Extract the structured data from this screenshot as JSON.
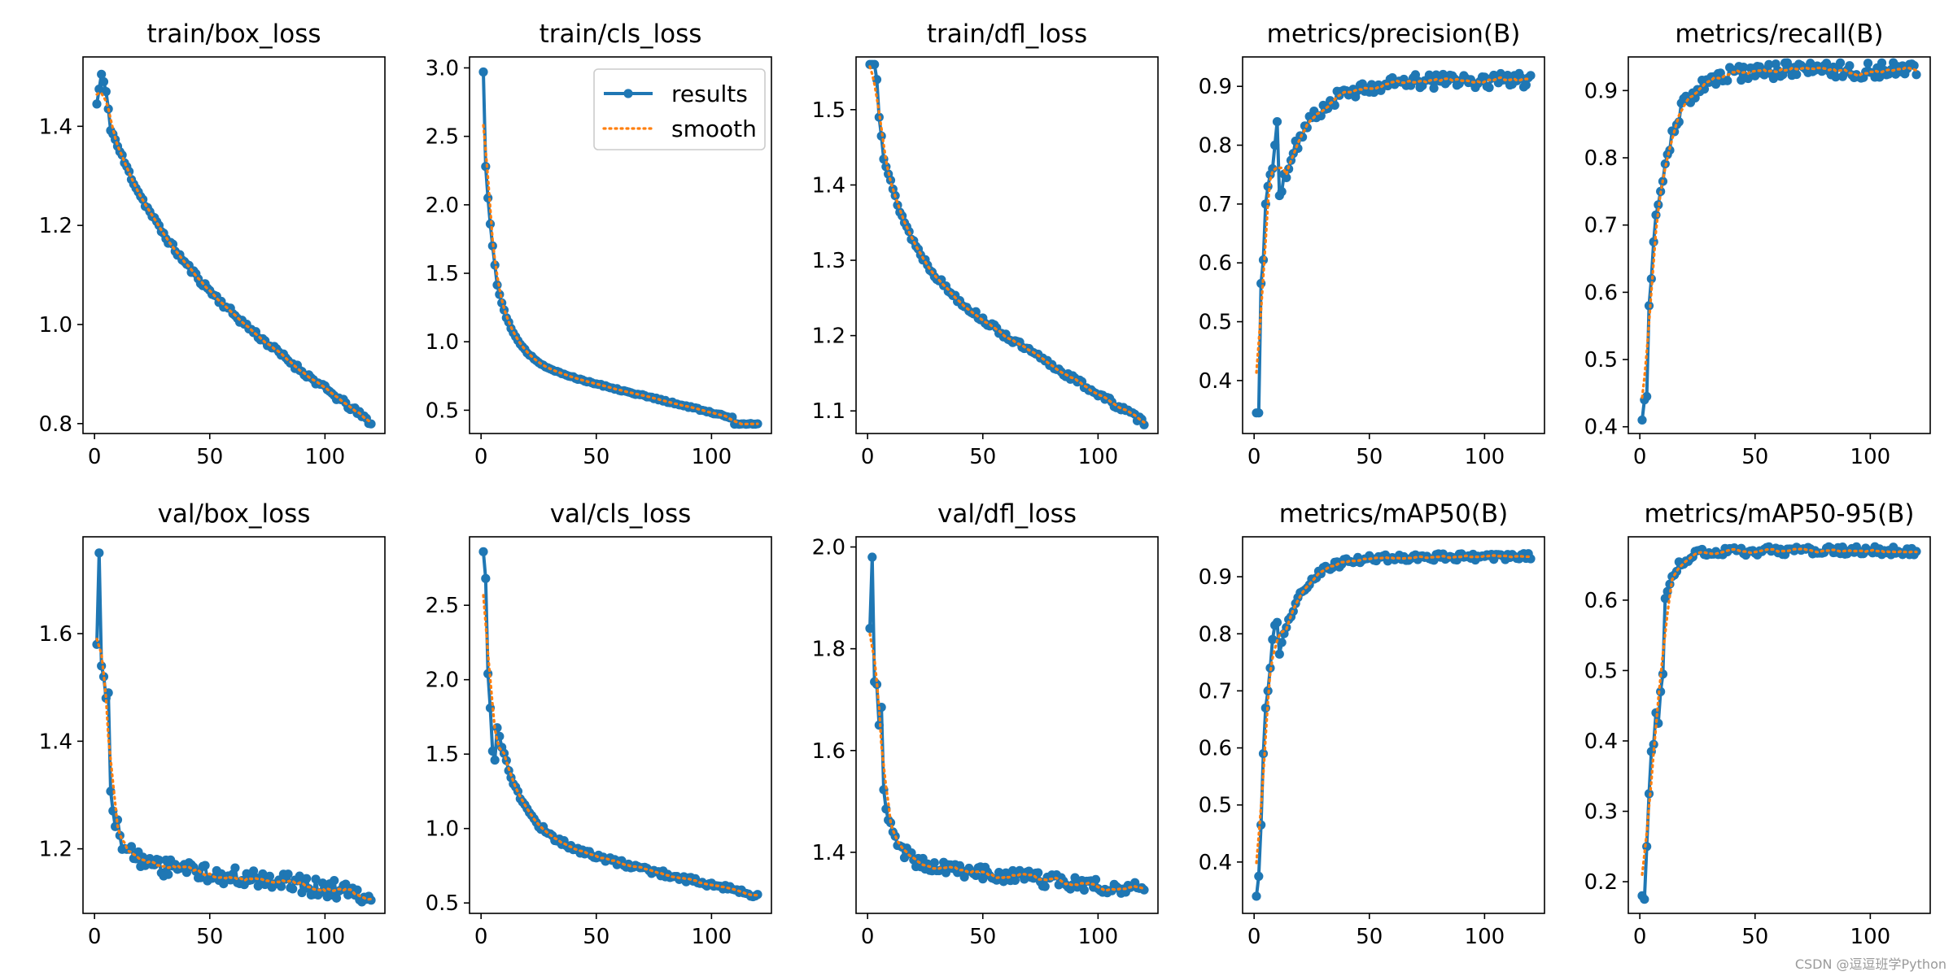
{
  "watermark": "CSDN @逗逗班学Python",
  "colors": {
    "results": "#1f77b4",
    "smooth": "#ff7f0e",
    "axis": "#000000"
  },
  "legend": {
    "placement": "upper right (train/cls_loss panel)",
    "results_label": "results",
    "smooth_label": "smooth"
  },
  "chart_data": [
    {
      "type": "line",
      "title": "train/box_loss",
      "xlim": [
        -5,
        126
      ],
      "ylim": [
        0.78,
        1.54
      ],
      "xticks": [
        0,
        50,
        100
      ],
      "xtick_labels": [
        "0",
        "50",
        "100"
      ],
      "yticks": [
        0.8,
        1.0,
        1.2,
        1.4
      ],
      "ytick_labels": [
        "0.8",
        "1.0",
        "1.2",
        "1.4"
      ],
      "curve": {
        "start": 1.48,
        "end": 0.8,
        "k": 5.0,
        "lin": 0.58
      },
      "overrides": [
        [
          1,
          1.445
        ],
        [
          2,
          1.475
        ],
        [
          3,
          1.505
        ],
        [
          4,
          1.49
        ],
        [
          5,
          1.47
        ],
        [
          6,
          1.435
        ]
      ],
      "noise": 0.006,
      "seed": 11
    },
    {
      "type": "line",
      "title": "train/cls_loss",
      "xlim": [
        -5,
        126
      ],
      "ylim": [
        0.33,
        3.08
      ],
      "xticks": [
        0,
        50,
        100
      ],
      "xtick_labels": [
        "0",
        "50",
        "100"
      ],
      "yticks": [
        0.5,
        1.0,
        1.5,
        2.0,
        2.5,
        3.0
      ],
      "ytick_labels": [
        "0.5",
        "1.0",
        "1.5",
        "2.0",
        "2.5",
        "3.0"
      ],
      "curve": {
        "start": 2.05,
        "end": 0.4,
        "k": 15.0,
        "lin": 0.3
      },
      "overrides": [
        [
          1,
          2.97
        ],
        [
          2,
          2.28
        ],
        [
          3,
          2.05
        ],
        [
          4,
          1.86
        ],
        [
          5,
          1.7
        ],
        [
          6,
          1.56
        ]
      ],
      "drop": {
        "at": 110,
        "to": 0.4
      },
      "noise": 0.006,
      "seed": 12,
      "legend": true
    },
    {
      "type": "line",
      "title": "train/dfl_loss",
      "xlim": [
        -5,
        126
      ],
      "ylim": [
        1.07,
        1.57
      ],
      "xticks": [
        0,
        50,
        100
      ],
      "xtick_labels": [
        "0",
        "50",
        "100"
      ],
      "yticks": [
        1.1,
        1.2,
        1.3,
        1.4,
        1.5
      ],
      "ytick_labels": [
        "1.1",
        "1.2",
        "1.3",
        "1.4",
        "1.5"
      ],
      "curve": {
        "start": 1.53,
        "end": 1.085,
        "k": 9.0,
        "lin": 0.5
      },
      "overrides": [
        [
          1,
          1.56
        ],
        [
          2,
          1.56
        ],
        [
          3,
          1.56
        ],
        [
          4,
          1.54
        ],
        [
          5,
          1.49
        ],
        [
          6,
          1.465
        ]
      ],
      "noise": 0.004,
      "seed": 13
    },
    {
      "type": "line",
      "title": "metrics/precision(B)",
      "xlim": [
        -5,
        126
      ],
      "ylim": [
        0.31,
        0.95
      ],
      "xticks": [
        0,
        50,
        100
      ],
      "xtick_labels": [
        "0",
        "50",
        "100"
      ],
      "yticks": [
        0.4,
        0.5,
        0.6,
        0.7,
        0.8,
        0.9
      ],
      "ytick_labels": [
        "0.4",
        "0.5",
        "0.6",
        "0.7",
        "0.8",
        "0.9"
      ],
      "curve": {
        "start": 0.5,
        "end": 0.91,
        "k": 9.0,
        "lin": 0.0
      },
      "overrides": [
        [
          1,
          0.345
        ],
        [
          2,
          0.345
        ],
        [
          3,
          0.565
        ],
        [
          4,
          0.605
        ],
        [
          5,
          0.7
        ],
        [
          6,
          0.73
        ],
        [
          7,
          0.75
        ],
        [
          8,
          0.76
        ],
        [
          9,
          0.8
        ],
        [
          10,
          0.84
        ]
      ],
      "noise": 0.012,
      "seed": 14
    },
    {
      "type": "line",
      "title": "metrics/recall(B)",
      "xlim": [
        -5,
        126
      ],
      "ylim": [
        0.39,
        0.95
      ],
      "xticks": [
        0,
        50,
        100
      ],
      "xtick_labels": [
        "0",
        "50",
        "100"
      ],
      "yticks": [
        0.4,
        0.5,
        0.6,
        0.7,
        0.8,
        0.9
      ],
      "ytick_labels": [
        "0.4",
        "0.5",
        "0.6",
        "0.7",
        "0.8",
        "0.9"
      ],
      "curve": {
        "start": 0.49,
        "end": 0.93,
        "k": 14.0,
        "lin": 0.0
      },
      "overrides": [
        [
          1,
          0.41
        ],
        [
          2,
          0.44
        ],
        [
          3,
          0.445
        ],
        [
          4,
          0.58
        ],
        [
          5,
          0.62
        ],
        [
          6,
          0.675
        ],
        [
          7,
          0.715
        ],
        [
          8,
          0.73
        ],
        [
          9,
          0.75
        ],
        [
          10,
          0.765
        ]
      ],
      "noise": 0.012,
      "seed": 15
    },
    {
      "type": "line",
      "title": "val/box_loss",
      "xlim": [
        -5,
        126
      ],
      "ylim": [
        1.08,
        1.78
      ],
      "xticks": [
        0,
        50,
        100
      ],
      "xtick_labels": [
        "0",
        "50",
        "100"
      ],
      "yticks": [
        1.2,
        1.4,
        1.6
      ],
      "ytick_labels": [
        "1.2",
        "1.4",
        "1.6"
      ],
      "curve": {
        "start": 1.56,
        "end": 1.115,
        "k": 24.0,
        "lin": 0.15
      },
      "overrides": [
        [
          1,
          1.58
        ],
        [
          2,
          1.75
        ],
        [
          3,
          1.54
        ],
        [
          4,
          1.52
        ],
        [
          5,
          1.48
        ],
        [
          6,
          1.49
        ]
      ],
      "noise": 0.018,
      "seed": 16
    },
    {
      "type": "line",
      "title": "val/cls_loss",
      "xlim": [
        -5,
        126
      ],
      "ylim": [
        0.43,
        2.96
      ],
      "xticks": [
        0,
        50,
        100
      ],
      "xtick_labels": [
        "0",
        "50",
        "100"
      ],
      "yticks": [
        0.5,
        1.0,
        1.5,
        2.0,
        2.5
      ],
      "ytick_labels": [
        "0.5",
        "1.0",
        "1.5",
        "2.0",
        "2.5"
      ],
      "curve": {
        "start": 2.25,
        "end": 0.55,
        "k": 11.0,
        "lin": 0.25
      },
      "overrides": [
        [
          1,
          2.86
        ],
        [
          2,
          2.68
        ],
        [
          3,
          2.04
        ],
        [
          4,
          1.81
        ],
        [
          5,
          1.52
        ],
        [
          6,
          1.46
        ]
      ],
      "noise": 0.02,
      "seed": 17
    },
    {
      "type": "line",
      "title": "val/dfl_loss",
      "xlim": [
        -5,
        126
      ],
      "ylim": [
        1.28,
        2.02
      ],
      "xticks": [
        0,
        50,
        100
      ],
      "xtick_labels": [
        "0",
        "50",
        "100"
      ],
      "yticks": [
        1.4,
        1.6,
        1.8,
        2.0
      ],
      "ytick_labels": [
        "1.4",
        "1.6",
        "1.8",
        "2.0"
      ],
      "curve": {
        "start": 1.8,
        "end": 1.325,
        "k": 22.0,
        "lin": 0.12
      },
      "overrides": [
        [
          1,
          1.84
        ],
        [
          2,
          1.98
        ],
        [
          3,
          1.735
        ],
        [
          4,
          1.73
        ],
        [
          5,
          1.65
        ],
        [
          6,
          1.685
        ]
      ],
      "noise": 0.014,
      "seed": 18
    },
    {
      "type": "line",
      "title": "metrics/mAP50(B)",
      "xlim": [
        -5,
        126
      ],
      "ylim": [
        0.31,
        0.97
      ],
      "xticks": [
        0,
        50,
        100
      ],
      "xtick_labels": [
        "0",
        "50",
        "100"
      ],
      "yticks": [
        0.4,
        0.5,
        0.6,
        0.7,
        0.8,
        0.9
      ],
      "ytick_labels": [
        "0.4",
        "0.5",
        "0.6",
        "0.7",
        "0.8",
        "0.9"
      ],
      "curve": {
        "start": 0.48,
        "end": 0.935,
        "k": 12.0,
        "lin": 0.0
      },
      "overrides": [
        [
          1,
          0.34
        ],
        [
          2,
          0.375
        ],
        [
          3,
          0.465
        ],
        [
          4,
          0.59
        ],
        [
          5,
          0.67
        ],
        [
          6,
          0.7
        ],
        [
          7,
          0.74
        ],
        [
          8,
          0.79
        ],
        [
          9,
          0.815
        ],
        [
          10,
          0.82
        ]
      ],
      "noise": 0.006,
      "seed": 19
    },
    {
      "type": "line",
      "title": "metrics/mAP50-95(B)",
      "xlim": [
        -5,
        126
      ],
      "ylim": [
        0.155,
        0.69
      ],
      "xticks": [
        0,
        50,
        100
      ],
      "xtick_labels": [
        "0",
        "50",
        "100"
      ],
      "yticks": [
        0.2,
        0.3,
        0.4,
        0.5,
        0.6
      ],
      "ytick_labels": [
        "0.2",
        "0.3",
        "0.4",
        "0.5",
        "0.6"
      ],
      "curve": {
        "start": 0.26,
        "end": 0.67,
        "k": 22.0,
        "lin": 0.0
      },
      "overrides": [
        [
          1,
          0.18
        ],
        [
          2,
          0.175
        ],
        [
          3,
          0.25
        ],
        [
          4,
          0.325
        ],
        [
          5,
          0.385
        ],
        [
          6,
          0.395
        ],
        [
          7,
          0.44
        ],
        [
          8,
          0.425
        ],
        [
          9,
          0.47
        ],
        [
          10,
          0.495
        ]
      ],
      "noise": 0.006,
      "seed": 20
    }
  ]
}
